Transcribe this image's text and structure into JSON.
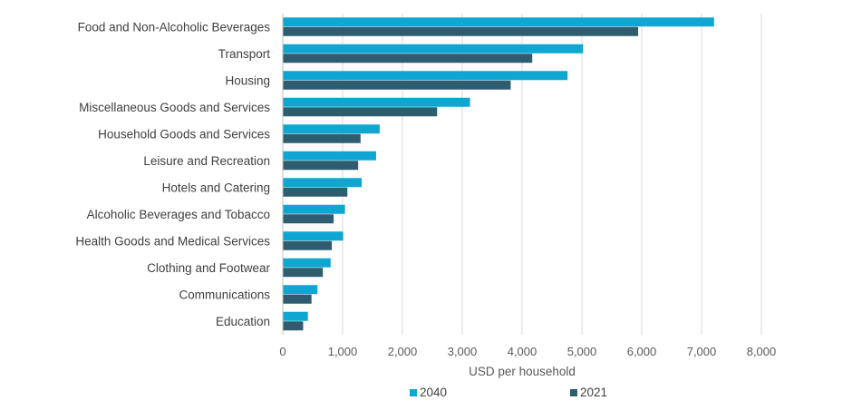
{
  "chart_data": {
    "type": "bar",
    "orientation": "horizontal",
    "categories": [
      "Food and Non-Alcoholic Beverages",
      "Transport",
      "Housing",
      "Miscellaneous Goods and Services",
      "Household Goods and Services",
      "Leisure and Recreation",
      "Hotels and Catering",
      "Alcoholic Beverages and Tobacco",
      "Health Goods and Medical Services",
      "Clothing and Footwear",
      "Communications",
      "Education"
    ],
    "series": [
      {
        "name": "2040",
        "color": "#0fa7d2",
        "values": [
          7210,
          5020,
          4760,
          3130,
          1620,
          1560,
          1320,
          1040,
          1010,
          800,
          580,
          420
        ]
      },
      {
        "name": "2021",
        "color": "#2f5d70",
        "values": [
          5940,
          4170,
          3810,
          2580,
          1300,
          1260,
          1080,
          850,
          820,
          670,
          480,
          340
        ]
      }
    ],
    "xlabel": "USD per household",
    "xlim": [
      0,
      8000
    ],
    "xticks": [
      0,
      1000,
      2000,
      3000,
      4000,
      5000,
      6000,
      7000,
      8000
    ],
    "xtick_labels": [
      "0",
      "1,000",
      "2,000",
      "3,000",
      "4,000",
      "5,000",
      "6,000",
      "7,000",
      "8,000"
    ],
    "grid": "vertical",
    "legend_position": "bottom"
  }
}
